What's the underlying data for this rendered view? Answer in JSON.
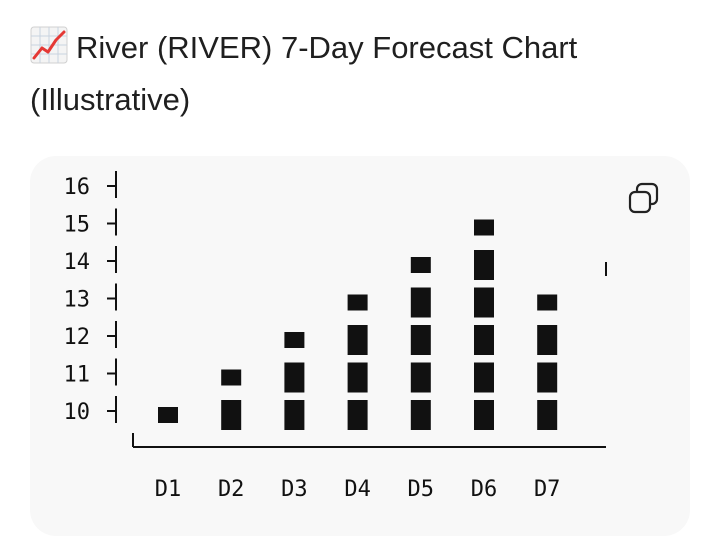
{
  "header": {
    "title": "River (RIVER) 7-Day Forecast Chart (Illustrative)",
    "icon": "chart-increasing-icon"
  },
  "toolbar": {
    "copy_icon": "copy-icon"
  },
  "colors": {
    "bar": "#111111",
    "axis": "#111111",
    "card": "#f8f8f8"
  },
  "chart_data": {
    "type": "bar",
    "style": "ascii-block",
    "categories": [
      "D1",
      "D2",
      "D3",
      "D4",
      "D5",
      "D6",
      "D7"
    ],
    "values": [
      10,
      11,
      12,
      13,
      14,
      15,
      13
    ],
    "ylim": [
      10,
      16
    ],
    "yticks": [
      10,
      11,
      12,
      13,
      14,
      15,
      16
    ],
    "ylabel": "",
    "xlabel": "",
    "grid": false
  }
}
